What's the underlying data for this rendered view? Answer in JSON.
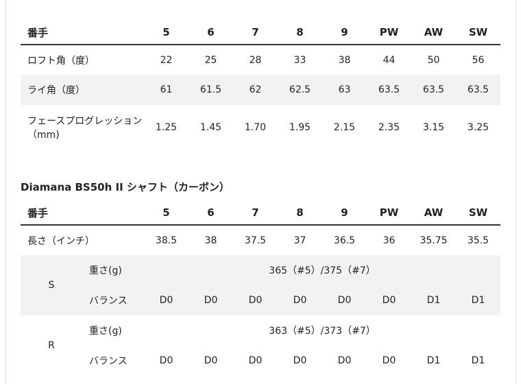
{
  "loft_table": {
    "header": [
      "番手",
      "5",
      "6",
      "7",
      "8",
      "9",
      "PW",
      "AW",
      "SW"
    ],
    "rows": [
      {
        "label": "ロフト角（度）",
        "values": [
          "22",
          "25",
          "28",
          "33",
          "38",
          "44",
          "50",
          "56"
        ]
      },
      {
        "label": "ライ角（度）",
        "values": [
          "61",
          "61.5",
          "62",
          "62.5",
          "63",
          "63.5",
          "63.5",
          "63.5"
        ]
      },
      {
        "label": "フェースプログレッション（mm)",
        "values": [
          "1.25",
          "1.45",
          "1.70",
          "1.95",
          "2.15",
          "2.35",
          "3.15",
          "3.25"
        ]
      }
    ]
  },
  "shaft_section": {
    "title": "Diamana BS50h II シャフト（カーボン）",
    "header": [
      "番手",
      "5",
      "6",
      "7",
      "8",
      "9",
      "PW",
      "AW",
      "SW"
    ],
    "length": {
      "label": "長さ（インチ）",
      "values": [
        "38.5",
        "38",
        "37.5",
        "37",
        "36.5",
        "36",
        "35.75",
        "35.5"
      ]
    },
    "flexes": [
      {
        "flex": "S",
        "weight_label": "重さ(g)",
        "weight": "365（#5）/375（#7）",
        "balance_label": "バランス",
        "balance": [
          "D0",
          "D0",
          "D0",
          "D0",
          "D0",
          "D0",
          "D1",
          "D1"
        ]
      },
      {
        "flex": "R",
        "weight_label": "重さ(g)",
        "weight": "363（#5）/373（#7）",
        "balance_label": "バランス",
        "balance": [
          "D0",
          "D0",
          "D0",
          "D0",
          "D0",
          "D0",
          "D1",
          "D1"
        ]
      }
    ]
  }
}
